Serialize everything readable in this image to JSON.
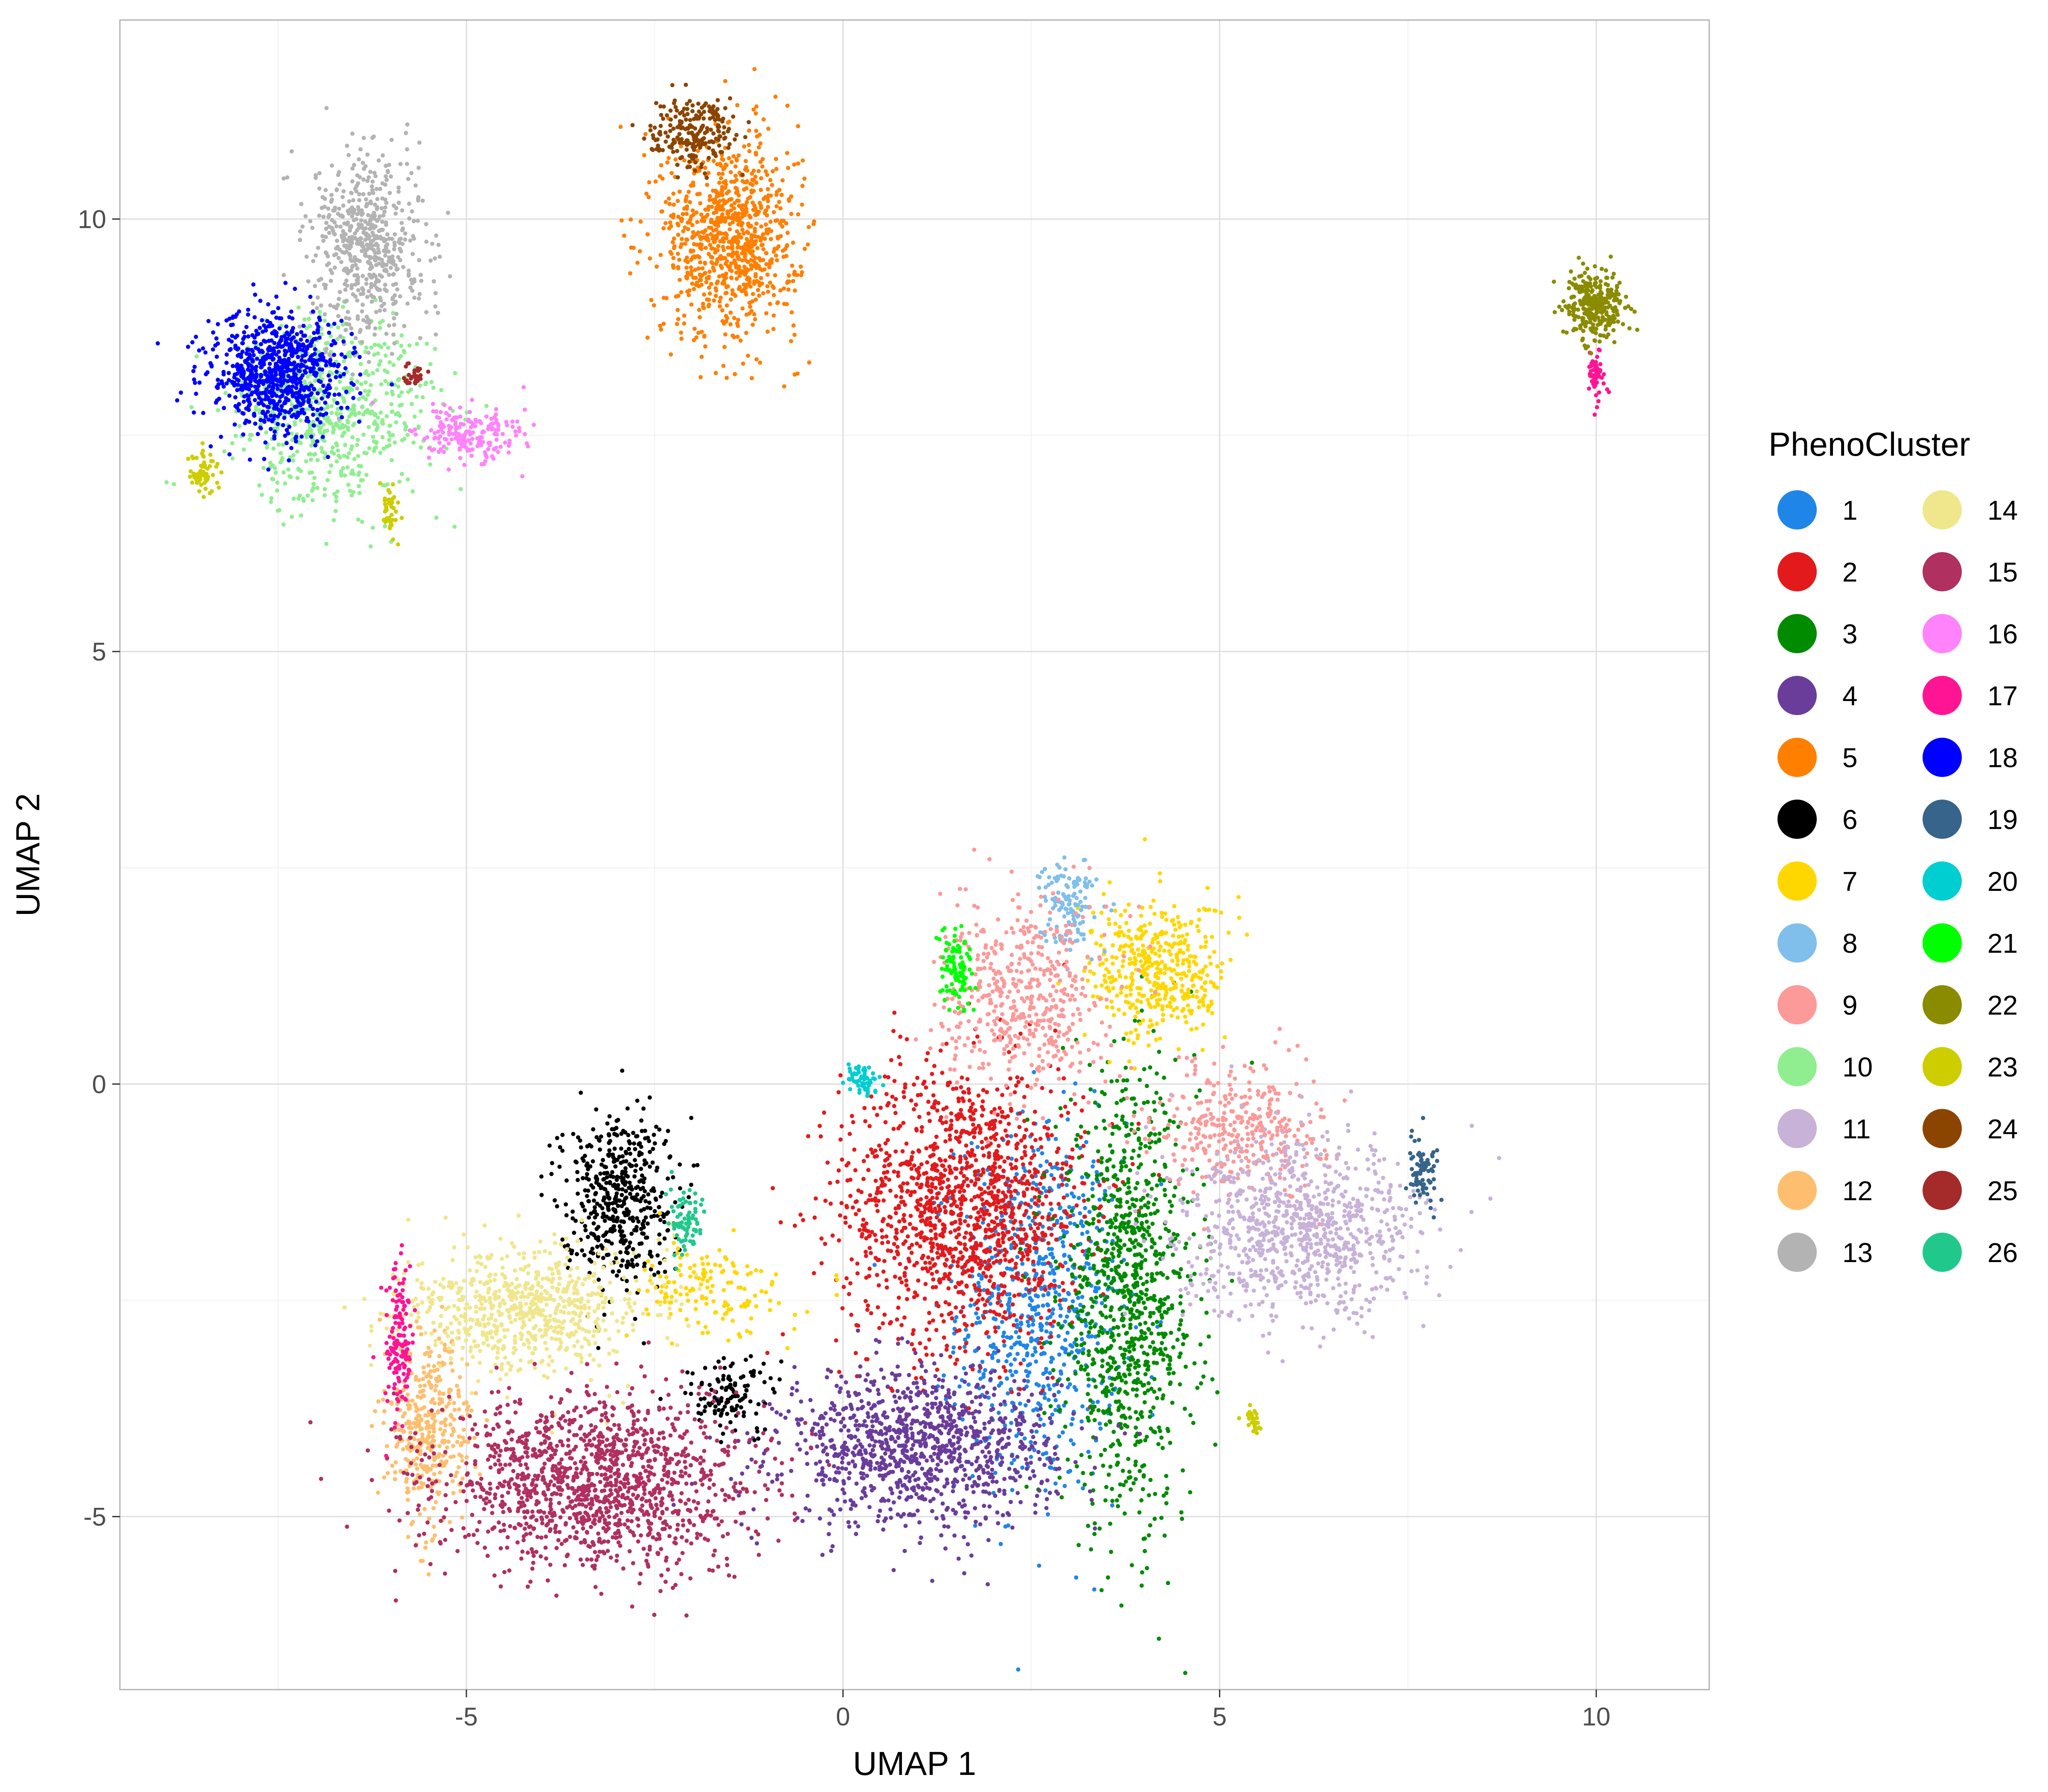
{
  "chart_data": {
    "type": "scatter",
    "xlabel": "UMAP 1",
    "ylabel": "UMAP 2",
    "xlim": [
      -9.6,
      11.5
    ],
    "ylim": [
      -7.0,
      12.3
    ],
    "x_ticks": [
      -5,
      0,
      5,
      10
    ],
    "x_tick_labels": [
      "-5",
      "0",
      "5",
      "10"
    ],
    "y_ticks": [
      -5,
      0,
      5,
      10
    ],
    "y_tick_labels": [
      "-5",
      "0",
      "5",
      "10"
    ],
    "grid": true,
    "legend": {
      "title": "PhenoCluster",
      "placement": "right",
      "columns": 2
    },
    "series": [
      {
        "name": "1",
        "color": "#1f86e8",
        "clusters": [
          {
            "cx": 2.6,
            "cy": -2.6,
            "sx": 0.6,
            "sy": 1.2,
            "n": 700
          }
        ]
      },
      {
        "name": "2",
        "color": "#e31a1c",
        "clusters": [
          {
            "cx": 1.6,
            "cy": -1.4,
            "sx": 0.9,
            "sy": 0.9,
            "n": 1400
          }
        ]
      },
      {
        "name": "3",
        "color": "#008b00",
        "clusters": [
          {
            "cx": 3.8,
            "cy": -2.5,
            "sx": 0.5,
            "sy": 1.4,
            "n": 1000
          }
        ]
      },
      {
        "name": "4",
        "color": "#6a3d9a",
        "clusters": [
          {
            "cx": 1.0,
            "cy": -4.2,
            "sx": 1.0,
            "sy": 0.5,
            "n": 1100
          }
        ]
      },
      {
        "name": "5",
        "color": "#ff7f00",
        "clusters": [
          {
            "cx": -1.5,
            "cy": 9.8,
            "sx": 0.5,
            "sy": 0.65,
            "n": 900
          }
        ]
      },
      {
        "name": "6",
        "color": "#000000",
        "clusters": [
          {
            "cx": -3.0,
            "cy": -1.3,
            "sx": 0.4,
            "sy": 0.55,
            "n": 500
          },
          {
            "cx": -1.5,
            "cy": -3.6,
            "sx": 0.35,
            "sy": 0.25,
            "n": 120
          }
        ]
      },
      {
        "name": "7",
        "color": "#ffd700",
        "clusters": [
          {
            "cx": 4.2,
            "cy": 1.3,
            "sx": 0.5,
            "sy": 0.45,
            "n": 450
          },
          {
            "cx": -1.8,
            "cy": -2.4,
            "sx": 0.6,
            "sy": 0.3,
            "n": 150
          }
        ]
      },
      {
        "name": "8",
        "color": "#80bfeb",
        "clusters": [
          {
            "cx": 3.0,
            "cy": 2.1,
            "sx": 0.2,
            "sy": 0.3,
            "n": 130
          }
        ]
      },
      {
        "name": "9",
        "color": "#fb9a99",
        "clusters": [
          {
            "cx": 2.4,
            "cy": 1.0,
            "sx": 0.6,
            "sy": 0.6,
            "n": 500
          },
          {
            "cx": 5.3,
            "cy": -0.5,
            "sx": 0.6,
            "sy": 0.4,
            "n": 350
          }
        ]
      },
      {
        "name": "10",
        "color": "#90ee90",
        "clusters": [
          {
            "cx": -6.8,
            "cy": 7.8,
            "sx": 0.75,
            "sy": 0.6,
            "n": 700
          }
        ]
      },
      {
        "name": "11",
        "color": "#c8b2d8",
        "clusters": [
          {
            "cx": 6.1,
            "cy": -1.7,
            "sx": 0.9,
            "sy": 0.55,
            "n": 900
          }
        ]
      },
      {
        "name": "12",
        "color": "#fdbf6f",
        "clusters": [
          {
            "cx": -5.5,
            "cy": -4.0,
            "sx": 0.3,
            "sy": 0.6,
            "n": 400
          }
        ]
      },
      {
        "name": "13",
        "color": "#b3b3b3",
        "clusters": [
          {
            "cx": -6.3,
            "cy": 9.7,
            "sx": 0.4,
            "sy": 0.6,
            "n": 600
          }
        ]
      },
      {
        "name": "14",
        "color": "#f0e68c",
        "clusters": [
          {
            "cx": -4.2,
            "cy": -2.6,
            "sx": 0.9,
            "sy": 0.4,
            "n": 700
          }
        ]
      },
      {
        "name": "15",
        "color": "#b03060",
        "clusters": [
          {
            "cx": -3.3,
            "cy": -4.6,
            "sx": 1.15,
            "sy": 0.55,
            "n": 1400
          }
        ]
      },
      {
        "name": "16",
        "color": "#ff83fa",
        "clusters": [
          {
            "cx": -5.0,
            "cy": 7.5,
            "sx": 0.4,
            "sy": 0.2,
            "n": 200
          }
        ]
      },
      {
        "name": "17",
        "color": "#ff1493",
        "clusters": [
          {
            "cx": -5.9,
            "cy": -3.0,
            "sx": 0.1,
            "sy": 0.5,
            "n": 150
          },
          {
            "cx": 10.0,
            "cy": 8.2,
            "sx": 0.06,
            "sy": 0.15,
            "n": 60
          }
        ]
      },
      {
        "name": "18",
        "color": "#0000ff",
        "clusters": [
          {
            "cx": -7.5,
            "cy": 8.2,
            "sx": 0.5,
            "sy": 0.4,
            "n": 800
          }
        ]
      },
      {
        "name": "19",
        "color": "#36648b",
        "clusters": [
          {
            "cx": 7.7,
            "cy": -1.0,
            "sx": 0.12,
            "sy": 0.2,
            "n": 80
          }
        ]
      },
      {
        "name": "20",
        "color": "#00ced1",
        "clusters": [
          {
            "cx": 0.25,
            "cy": 0.05,
            "sx": 0.12,
            "sy": 0.1,
            "n": 60
          }
        ]
      },
      {
        "name": "21",
        "color": "#00ff00",
        "clusters": [
          {
            "cx": 1.5,
            "cy": 1.3,
            "sx": 0.12,
            "sy": 0.25,
            "n": 100
          }
        ]
      },
      {
        "name": "22",
        "color": "#8b8b00",
        "clusters": [
          {
            "cx": 10.0,
            "cy": 9.0,
            "sx": 0.22,
            "sy": 0.22,
            "n": 300
          }
        ]
      },
      {
        "name": "23",
        "color": "#cdcd00",
        "clusters": [
          {
            "cx": -8.5,
            "cy": 7.1,
            "sx": 0.12,
            "sy": 0.15,
            "n": 60
          },
          {
            "cx": -6.0,
            "cy": 6.6,
            "sx": 0.1,
            "sy": 0.15,
            "n": 40
          },
          {
            "cx": 5.45,
            "cy": -3.9,
            "sx": 0.06,
            "sy": 0.1,
            "n": 30
          }
        ]
      },
      {
        "name": "24",
        "color": "#8b4500",
        "clusters": [
          {
            "cx": -2.0,
            "cy": 11.0,
            "sx": 0.3,
            "sy": 0.2,
            "n": 220
          }
        ]
      },
      {
        "name": "25",
        "color": "#a52a2a",
        "clusters": [
          {
            "cx": -5.7,
            "cy": 8.2,
            "sx": 0.1,
            "sy": 0.08,
            "n": 30
          }
        ]
      },
      {
        "name": "26",
        "color": "#20c98b",
        "clusters": [
          {
            "cx": -2.1,
            "cy": -1.6,
            "sx": 0.15,
            "sy": 0.2,
            "n": 80
          }
        ]
      }
    ]
  }
}
